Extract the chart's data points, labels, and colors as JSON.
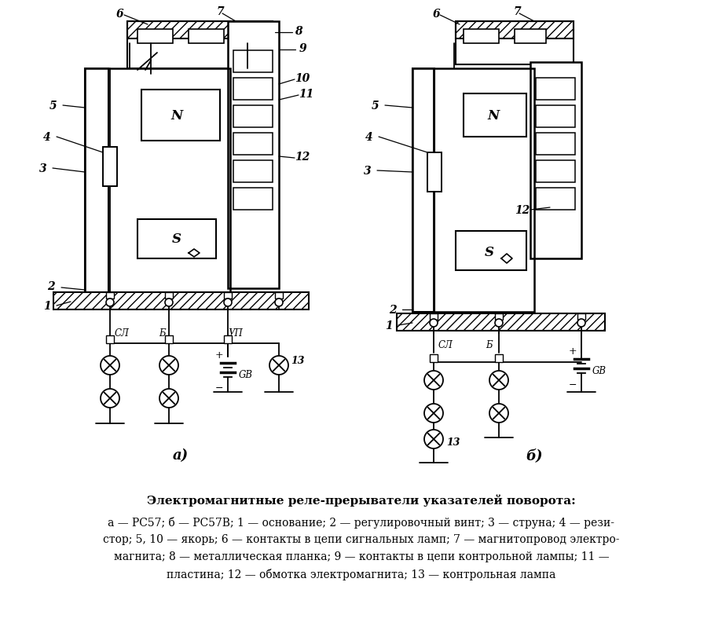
{
  "title_bold": "Электромагнитные реле-прерыватели указателей поворота:",
  "caption_line1": "а — РС57; б — РС57В; 1 — основание; 2 — регулировочный винт; 3 — струна; 4 — рези-",
  "caption_line2": "стор; 5, 10 — якорь; 6 — контакты в цепи сигнальных ламп; 7 — магнитопровод электро-",
  "caption_line3": "магнита; 8 — металлическая планка; 9 — контакты в цепи контрольной лампы; 11 —",
  "caption_line4": "пластина; 12 — обмотка электромагнита; 13 — контрольная лампа",
  "label_a": "а)",
  "label_b": "б)",
  "bg_color": "#ffffff",
  "line_color": "#000000",
  "text_color": "#000000",
  "figsize": [
    9.2,
    8.12
  ],
  "dpi": 100
}
